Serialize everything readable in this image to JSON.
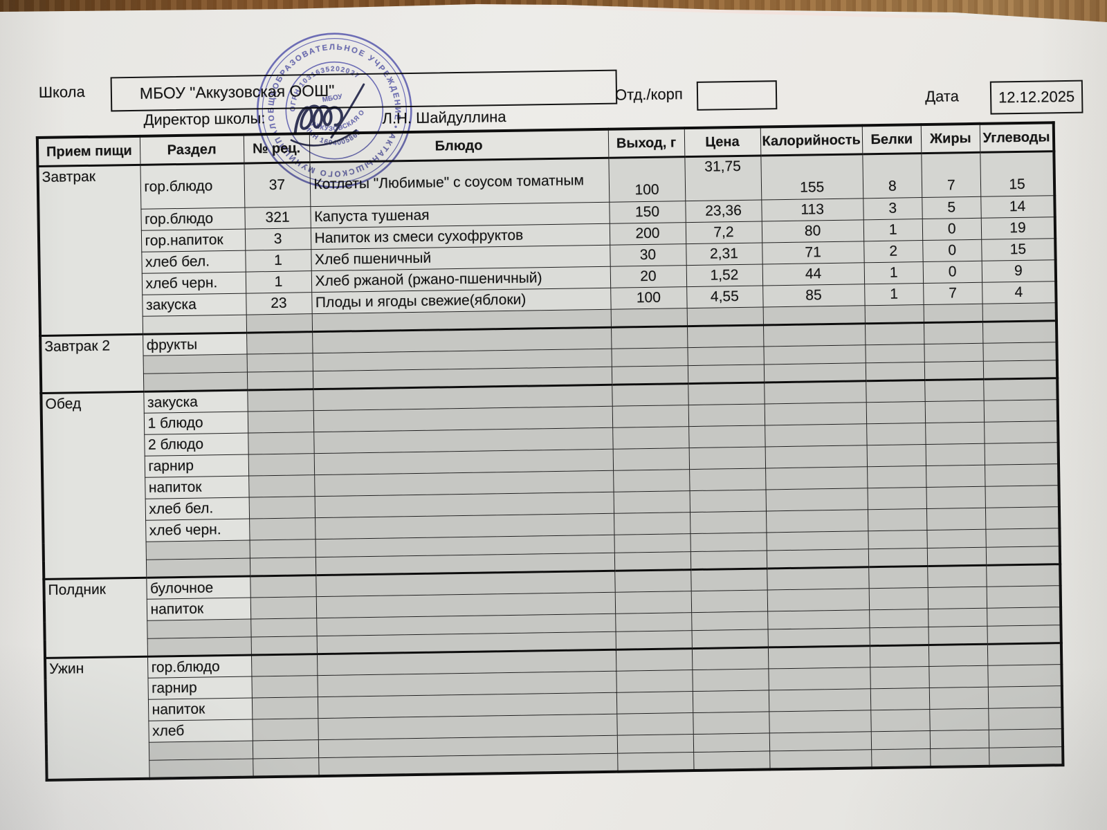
{
  "header": {
    "school_label": "Школа",
    "school_name": "МБОУ \"Аккузовская ООШ\"",
    "director_label": "Директор школы:",
    "director_name": "Л.Н. Шайдуллина",
    "dept_label": "Отд./корп",
    "dept_value": "",
    "date_label": "Дата",
    "date_value": "12.12.2025"
  },
  "stamp": {
    "ring_outer": "ОБЩЕОБРАЗОВАТЕЛЬНОЕ УЧРЕЖДЕНИЕ • АКТАНЫШСКОГО МУНИЦИПАЛЬНОГО РАЙОНА • ",
    "ogrn": "ОГРН 1031635202027",
    "inn": "ИНН 1604005863",
    "center_top": "МБОУ",
    "center_name": "\"АККУЗОВСКАЯ ООШ\""
  },
  "colors": {
    "stamp_ink": "#3c3ea2",
    "signature_ink": "#23274a",
    "wood": "#8a5a2e",
    "paper": "#eae9e6",
    "empty_cell": "#c6c7c3"
  },
  "table": {
    "headers": [
      "Прием пищи",
      "Раздел",
      "№ рец.",
      "Блюдо",
      "Выход, г",
      "Цена",
      "Калорийность",
      "Белки",
      "Жиры",
      "Углеводы"
    ],
    "sections": [
      {
        "meal": "Завтрак",
        "rows": [
          {
            "section": "гор.блюдо",
            "rec": "37",
            "dish": "Котлеты \"Любимые\" с соусом томатным",
            "out": "100",
            "price": "31,75",
            "kcal": "155",
            "prot": "8",
            "fat": "7",
            "carb": "15",
            "tall": true
          },
          {
            "section": "гор.блюдо",
            "rec": "321",
            "dish": "Капуста тушеная",
            "out": "150",
            "price": "23,36",
            "kcal": "113",
            "prot": "3",
            "fat": "5",
            "carb": "14"
          },
          {
            "section": "гор.напиток",
            "rec": "3",
            "dish": "Напиток из смеси сухофруктов",
            "out": "200",
            "price": "7,2",
            "kcal": "80",
            "prot": "1",
            "fat": "0",
            "carb": "19"
          },
          {
            "section": "хлеб бел.",
            "rec": "1",
            "dish": "Хлеб пшеничный",
            "out": "30",
            "price": "2,31",
            "kcal": "71",
            "prot": "2",
            "fat": "0",
            "carb": "15"
          },
          {
            "section": "хлеб черн.",
            "rec": "1",
            "dish": "Хлеб ржаной (ржано-пшеничный)",
            "out": "20",
            "price": "1,52",
            "kcal": "44",
            "prot": "1",
            "fat": "0",
            "carb": "9"
          },
          {
            "section": "закуска",
            "rec": "23",
            "dish": "Плоды и ягоды свежие(яблоки)",
            "out": "100",
            "price": "4,55",
            "kcal": "85",
            "prot": "1",
            "fat": "7",
            "carb": "4"
          },
          {
            "empty": true,
            "light": true
          }
        ]
      },
      {
        "meal": "Завтрак 2",
        "rows": [
          {
            "section": "фрукты"
          },
          {
            "empty": true
          },
          {
            "empty": true
          }
        ]
      },
      {
        "meal": "Обед",
        "rows": [
          {
            "section": "закуска"
          },
          {
            "section": "1 блюдо"
          },
          {
            "section": "2 блюдо"
          },
          {
            "section": "гарнир"
          },
          {
            "section": "напиток"
          },
          {
            "section": "хлеб бел."
          },
          {
            "section": "хлеб черн."
          },
          {
            "empty": true
          },
          {
            "empty": true
          }
        ]
      },
      {
        "meal": "Полдник",
        "rows": [
          {
            "section": "булочное"
          },
          {
            "section": "напиток"
          },
          {
            "empty": true
          },
          {
            "empty": true
          }
        ]
      },
      {
        "meal": "Ужин",
        "rows": [
          {
            "section": "гор.блюдо"
          },
          {
            "section": "гарнир"
          },
          {
            "section": "напиток"
          },
          {
            "section": "хлеб"
          },
          {
            "empty": true
          },
          {
            "empty": true
          }
        ]
      }
    ]
  }
}
